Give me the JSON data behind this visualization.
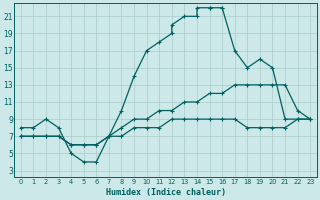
{
  "xlabel": "Humidex (Indice chaleur)",
  "bg_color": "#cce8e8",
  "grid_color": "#b8d8d8",
  "line_color": "#006060",
  "xlim": [
    -0.5,
    23.5
  ],
  "ylim": [
    2.2,
    22.5
  ],
  "xticks": [
    0,
    1,
    2,
    3,
    4,
    5,
    6,
    7,
    8,
    9,
    10,
    11,
    12,
    13,
    14,
    15,
    16,
    17,
    18,
    19,
    20,
    21,
    22,
    23
  ],
  "yticks": [
    3,
    5,
    7,
    9,
    11,
    13,
    15,
    17,
    19,
    21
  ],
  "curve1_x": [
    0,
    1,
    2,
    3,
    4,
    5,
    6,
    7,
    8,
    9,
    10,
    11,
    12,
    12,
    13,
    14,
    14,
    15,
    15,
    16,
    16,
    17,
    18,
    19,
    20,
    21,
    22,
    23
  ],
  "curve1_y": [
    8,
    8,
    9,
    8,
    5,
    4,
    4,
    7,
    10,
    14,
    17,
    18,
    19,
    20,
    21,
    21,
    22,
    22,
    22,
    22,
    22,
    17,
    15,
    16,
    15,
    9,
    9,
    9
  ],
  "curve2_x": [
    0,
    1,
    2,
    3,
    4,
    5,
    6,
    7,
    8,
    9,
    10,
    11,
    12,
    13,
    14,
    15,
    16,
    17,
    18,
    19,
    20,
    21,
    22,
    23
  ],
  "curve2_y": [
    7,
    7,
    7,
    7,
    6,
    6,
    6,
    7,
    8,
    9,
    9,
    10,
    10,
    11,
    11,
    12,
    12,
    13,
    13,
    13,
    13,
    13,
    10,
    9
  ],
  "curve3_x": [
    0,
    1,
    2,
    3,
    4,
    5,
    6,
    7,
    8,
    9,
    10,
    11,
    12,
    13,
    14,
    15,
    16,
    17,
    18,
    19,
    20,
    21,
    22,
    23
  ],
  "curve3_y": [
    7,
    7,
    7,
    7,
    6,
    6,
    6,
    7,
    7,
    8,
    8,
    8,
    9,
    9,
    9,
    9,
    9,
    9,
    8,
    8,
    8,
    8,
    9,
    9
  ]
}
